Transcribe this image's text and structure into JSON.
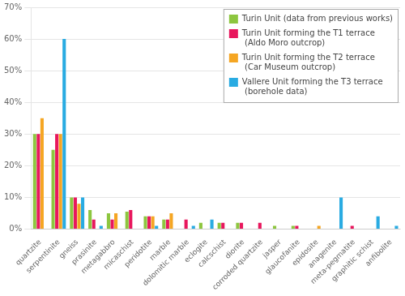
{
  "chart_data": {
    "type": "bar",
    "categories": [
      "quartzite",
      "serpentinite",
      "gneiss",
      "prasinite",
      "metagabbro",
      "micaschist",
      "peridotite",
      "marble",
      "dolomitic marble",
      "eclogite",
      "calcschist",
      "diorite",
      "corroded quartzite",
      "jasper",
      "glaucofanite",
      "epidosite",
      "anagenite",
      "meta-pegmatite",
      "graphitic schist",
      "anfibolite"
    ],
    "series": [
      {
        "name": "Turin Unit (data from previous works)",
        "color": "#8dc63f",
        "values": [
          30,
          25,
          10,
          6,
          5,
          5.5,
          4,
          3,
          0,
          2,
          2,
          2,
          0,
          1,
          1,
          0,
          0,
          0,
          0,
          0
        ]
      },
      {
        "name": "Turin Unit forming the T1 terrace\n (Aldo Moro outcrop)",
        "color": "#e8175d",
        "values": [
          30,
          30,
          10,
          3,
          3,
          6,
          4,
          3,
          3,
          0,
          2,
          2,
          2,
          0,
          1,
          0,
          0,
          1,
          0,
          0
        ]
      },
      {
        "name": "Turin Unit forming the T2 terrace\n (Car Museum outcrop)",
        "color": "#f5a623",
        "values": [
          35,
          30,
          8,
          0,
          5,
          0,
          4,
          5,
          0,
          0,
          0,
          0,
          0,
          0,
          0,
          1,
          0,
          0,
          0,
          0
        ]
      },
      {
        "name": "Vallere Unit forming the T3 terrace\n (borehole data)",
        "color": "#29abe2",
        "values": [
          0,
          60,
          10,
          1,
          0,
          0,
          1,
          0,
          1,
          3,
          0,
          0,
          0,
          0,
          0,
          0,
          10,
          0,
          4,
          1
        ]
      }
    ],
    "ylim": [
      0,
      70
    ],
    "yticks": [
      {
        "value": 0,
        "label": "0%"
      },
      {
        "value": 10,
        "label": "10%"
      },
      {
        "value": 20,
        "label": "20%"
      },
      {
        "value": 30,
        "label": "30%"
      },
      {
        "value": 40,
        "label": "40%"
      },
      {
        "value": 50,
        "label": "50%"
      },
      {
        "value": 60,
        "label": "60%"
      },
      {
        "value": 70,
        "label": "70%"
      }
    ],
    "grid": true,
    "legend": "upper right"
  }
}
